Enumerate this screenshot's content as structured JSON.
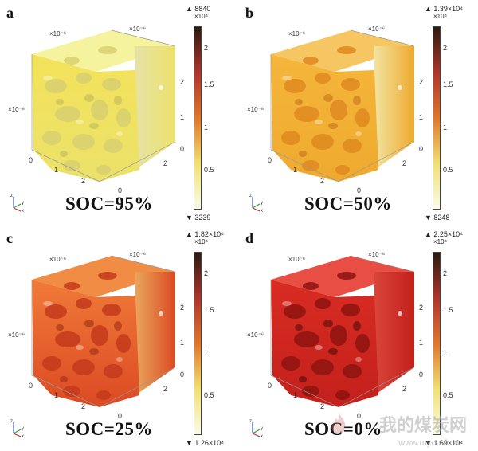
{
  "panels": [
    {
      "letter": "a",
      "soc": "SOC=95%",
      "cmax": "▲ 8840",
      "cmult": "×10⁴",
      "cmin": "▼ 3239",
      "colors": {
        "top": "#f6f29a",
        "front": "#ece26a",
        "side": "#e6e2a6",
        "pore": "#d9d070",
        "hi": "#f3e25a",
        "dark": "#bdb55a",
        "bar_top": "#2a1a10",
        "bar_mid": "#b0342a",
        "bar_low": "#f2e070",
        "bar_bottom": "#fbfbe8"
      }
    },
    {
      "letter": "b",
      "soc": "SOC=50%",
      "cmax": "▲ 1.39×10⁴",
      "cmult": "×10⁴",
      "cmin": "▼ 8248",
      "colors": {
        "top": "#f5c35b",
        "front": "#eeaa2e",
        "side": "#f2e3a0",
        "pore": "#e08a20",
        "hi": "#f5b63b",
        "dark": "#c06f18",
        "bar_top": "#2a1a10",
        "bar_mid": "#b0342a",
        "bar_low": "#f2e070",
        "bar_bottom": "#fbfbe8"
      }
    },
    {
      "letter": "c",
      "soc": "SOC=25%",
      "cmax": "▲ 1.82×10⁴",
      "cmult": "×10⁴",
      "cmin": "▼ 1.26×10⁴",
      "colors": {
        "top": "#f0863a",
        "front": "#dc4a24",
        "side": "#e9a55a",
        "pore": "#c43a1c",
        "hi": "#f07a38",
        "dark": "#9a2a12",
        "bar_top": "#2a1a10",
        "bar_mid": "#b0342a",
        "bar_low": "#f2e070",
        "bar_bottom": "#fbfbe8"
      }
    },
    {
      "letter": "d",
      "soc": "SOC=0%",
      "cmax": "▲ 2.25×10⁴",
      "cmult": "×10⁴",
      "cmin": "▼ 1.69×10⁴",
      "colors": {
        "top": "#e8443a",
        "front": "#c4201c",
        "side": "#d8453a",
        "pore": "#8e1410",
        "hi": "#d82c22",
        "dark": "#4a0a08",
        "bar_top": "#2a1a10",
        "bar_mid": "#b0342a",
        "bar_low": "#f2e070",
        "bar_bottom": "#fbfbe8"
      }
    }
  ],
  "common": {
    "sci_label": "×10⁻⁶",
    "x_ticks": [
      "0",
      "1",
      "2"
    ],
    "y_ticks": [
      "0",
      "2"
    ],
    "z_ticks": [
      "0",
      "1",
      "2"
    ],
    "cbar_ticks": [
      "2",
      "1.5",
      "1",
      "0.5"
    ],
    "axis_z": "z",
    "axis_y": "y",
    "axis_x": "x"
  },
  "watermark": {
    "text": "我的煤炭网",
    "url": "www.mycoal.cn"
  }
}
